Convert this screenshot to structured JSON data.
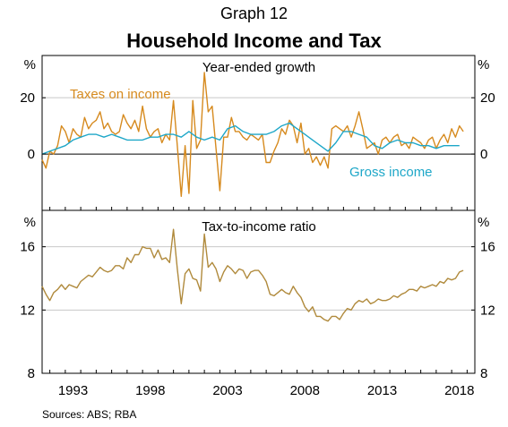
{
  "graph_number": "Graph 12",
  "title": "Household Income and Tax",
  "sources": "Sources:   ABS; RBA",
  "colors": {
    "taxes": "#d68a1e",
    "gross": "#1ea7c8",
    "ratio": "#b08a3c",
    "grid": "#c8c8c8",
    "axis": "#000000"
  },
  "chart_data": [
    {
      "type": "line",
      "panel_title": "Year-ended growth",
      "y_unit": "%",
      "ylim": [
        -20,
        35
      ],
      "yticks": [
        0,
        20
      ],
      "xlim": [
        1991.5,
        2019.5
      ],
      "xticks": [
        "1993",
        "1998",
        "2003",
        "2008",
        "2013",
        "2018"
      ],
      "grid": true,
      "series": [
        {
          "name": "Taxes on income",
          "x": [
            1991.5,
            1991.75,
            1992.0,
            1992.25,
            1992.5,
            1992.75,
            1993.0,
            1993.25,
            1993.5,
            1993.75,
            1994.0,
            1994.25,
            1994.5,
            1994.75,
            1995.0,
            1995.25,
            1995.5,
            1995.75,
            1996.0,
            1996.25,
            1996.5,
            1996.75,
            1997.0,
            1997.25,
            1997.5,
            1997.75,
            1998.0,
            1998.25,
            1998.5,
            1998.75,
            1999.0,
            1999.25,
            1999.5,
            1999.75,
            2000.0,
            2000.25,
            2000.5,
            2000.75,
            2001.0,
            2001.25,
            2001.5,
            2001.75,
            2002.0,
            2002.25,
            2002.5,
            2002.75,
            2003.0,
            2003.25,
            2003.5,
            2003.75,
            2004.0,
            2004.25,
            2004.5,
            2004.75,
            2005.0,
            2005.25,
            2005.5,
            2005.75,
            2006.0,
            2006.25,
            2006.5,
            2006.75,
            2007.0,
            2007.25,
            2007.5,
            2007.75,
            2008.0,
            2008.25,
            2008.5,
            2008.75,
            2009.0,
            2009.25,
            2009.5,
            2009.75,
            2010.0,
            2010.25,
            2010.5,
            2010.75,
            2011.0,
            2011.25,
            2011.5,
            2011.75,
            2012.0,
            2012.25,
            2012.5,
            2012.75,
            2013.0,
            2013.25,
            2013.5,
            2013.75,
            2014.0,
            2014.25,
            2014.5,
            2014.75,
            2015.0,
            2015.25,
            2015.5,
            2015.75,
            2016.0,
            2016.25,
            2016.5,
            2016.75,
            2017.0,
            2017.25,
            2017.5,
            2017.75,
            2018.0,
            2018.25,
            2018.5,
            2018.75
          ],
          "values": [
            -2,
            -5,
            1,
            0,
            3,
            10,
            8,
            4,
            9,
            7,
            6,
            13,
            9,
            11,
            12,
            15,
            9,
            11,
            8,
            7,
            8,
            14,
            11,
            9,
            12,
            8,
            17,
            9,
            6,
            8,
            9,
            4,
            7,
            5,
            19,
            3,
            -15,
            3,
            -14,
            19,
            2,
            5,
            29,
            15,
            17,
            2,
            -13,
            6,
            6,
            13,
            8,
            8,
            6,
            5,
            7,
            6,
            5,
            7,
            -3,
            -3,
            1,
            4,
            9,
            7,
            12,
            10,
            4,
            11,
            0,
            2,
            -3,
            -1,
            -4,
            -1,
            -5,
            9,
            10,
            9,
            8,
            10,
            6,
            10,
            15,
            9,
            2,
            3,
            4,
            0,
            5,
            6,
            4,
            6,
            7,
            3,
            4,
            2,
            6,
            5,
            4,
            2,
            5,
            6,
            2,
            5,
            7,
            4,
            9,
            6,
            10,
            8
          ]
        },
        {
          "name": "Gross income",
          "x": [
            1991.5,
            1992.0,
            1992.5,
            1993.0,
            1993.5,
            1994.0,
            1994.5,
            1995.0,
            1995.5,
            1996.0,
            1996.5,
            1997.0,
            1997.5,
            1998.0,
            1998.5,
            1999.0,
            1999.5,
            2000.0,
            2000.5,
            2001.0,
            2001.5,
            2002.0,
            2002.5,
            2003.0,
            2003.5,
            2004.0,
            2004.5,
            2005.0,
            2005.5,
            2006.0,
            2006.5,
            2007.0,
            2007.5,
            2008.0,
            2008.5,
            2009.0,
            2009.5,
            2010.0,
            2010.5,
            2011.0,
            2011.5,
            2012.0,
            2012.5,
            2013.0,
            2013.5,
            2014.0,
            2014.5,
            2015.0,
            2015.5,
            2016.0,
            2016.5,
            2017.0,
            2017.5,
            2018.0,
            2018.5
          ],
          "values": [
            0,
            1,
            2,
            3,
            5,
            6,
            7,
            7,
            6,
            7,
            6,
            5,
            5,
            5,
            6,
            6,
            7,
            7,
            6,
            8,
            6,
            5,
            6,
            5,
            9,
            10,
            8,
            7,
            7,
            7,
            8,
            10,
            11,
            9,
            7,
            5,
            3,
            1,
            4,
            8,
            8,
            7,
            6,
            3,
            2,
            4,
            5,
            4,
            4,
            3,
            3,
            2,
            3,
            3,
            3
          ]
        }
      ]
    },
    {
      "type": "line",
      "panel_title": "Tax-to-income ratio",
      "y_unit": "%",
      "ylim": [
        8,
        18.3
      ],
      "yticks": [
        8,
        12,
        16
      ],
      "xlim": [
        1991.5,
        2019.5
      ],
      "xticks": [
        "1993",
        "1998",
        "2003",
        "2008",
        "2013",
        "2018"
      ],
      "grid": true,
      "series": [
        {
          "name": "",
          "x": [
            1991.5,
            1991.75,
            1992.0,
            1992.25,
            1992.5,
            1992.75,
            1993.0,
            1993.25,
            1993.5,
            1993.75,
            1994.0,
            1994.25,
            1994.5,
            1994.75,
            1995.0,
            1995.25,
            1995.5,
            1995.75,
            1996.0,
            1996.25,
            1996.5,
            1996.75,
            1997.0,
            1997.25,
            1997.5,
            1997.75,
            1998.0,
            1998.25,
            1998.5,
            1998.75,
            1999.0,
            1999.25,
            1999.5,
            1999.75,
            2000.0,
            2000.25,
            2000.5,
            2000.75,
            2001.0,
            2001.25,
            2001.5,
            2001.75,
            2002.0,
            2002.25,
            2002.5,
            2002.75,
            2003.0,
            2003.25,
            2003.5,
            2003.75,
            2004.0,
            2004.25,
            2004.5,
            2004.75,
            2005.0,
            2005.25,
            2005.5,
            2005.75,
            2006.0,
            2006.25,
            2006.5,
            2006.75,
            2007.0,
            2007.25,
            2007.5,
            2007.75,
            2008.0,
            2008.25,
            2008.5,
            2008.75,
            2009.0,
            2009.25,
            2009.5,
            2009.75,
            2010.0,
            2010.25,
            2010.5,
            2010.75,
            2011.0,
            2011.25,
            2011.5,
            2011.75,
            2012.0,
            2012.25,
            2012.5,
            2012.75,
            2013.0,
            2013.25,
            2013.5,
            2013.75,
            2014.0,
            2014.25,
            2014.5,
            2014.75,
            2015.0,
            2015.25,
            2015.5,
            2015.75,
            2016.0,
            2016.25,
            2016.5,
            2016.75,
            2017.0,
            2017.25,
            2017.5,
            2017.75,
            2018.0,
            2018.25,
            2018.5,
            2018.75
          ],
          "values": [
            13.5,
            13.0,
            12.6,
            13.1,
            13.3,
            13.6,
            13.3,
            13.6,
            13.5,
            13.4,
            13.8,
            14.0,
            14.2,
            14.1,
            14.4,
            14.7,
            14.5,
            14.4,
            14.5,
            14.8,
            14.8,
            14.6,
            15.3,
            15.0,
            15.5,
            15.5,
            16.0,
            15.9,
            15.9,
            15.3,
            15.8,
            15.2,
            15.3,
            15.0,
            17.1,
            14.6,
            12.4,
            14.3,
            14.6,
            14.0,
            13.9,
            13.2,
            16.8,
            14.7,
            15.0,
            14.6,
            13.8,
            14.4,
            14.8,
            14.6,
            14.3,
            14.6,
            14.5,
            14.0,
            14.4,
            14.5,
            14.5,
            14.2,
            13.8,
            13.0,
            12.9,
            13.1,
            13.3,
            13.1,
            13.0,
            13.5,
            13.1,
            12.8,
            12.2,
            11.9,
            12.2,
            11.6,
            11.6,
            11.4,
            11.3,
            11.6,
            11.6,
            11.4,
            11.8,
            12.1,
            12.0,
            12.4,
            12.6,
            12.5,
            12.7,
            12.4,
            12.5,
            12.7,
            12.6,
            12.6,
            12.7,
            12.9,
            12.8,
            13.0,
            13.1,
            13.3,
            13.3,
            13.2,
            13.5,
            13.4,
            13.5,
            13.6,
            13.5,
            13.8,
            13.7,
            14.0,
            13.9,
            14.0,
            14.4,
            14.5
          ]
        }
      ]
    }
  ]
}
